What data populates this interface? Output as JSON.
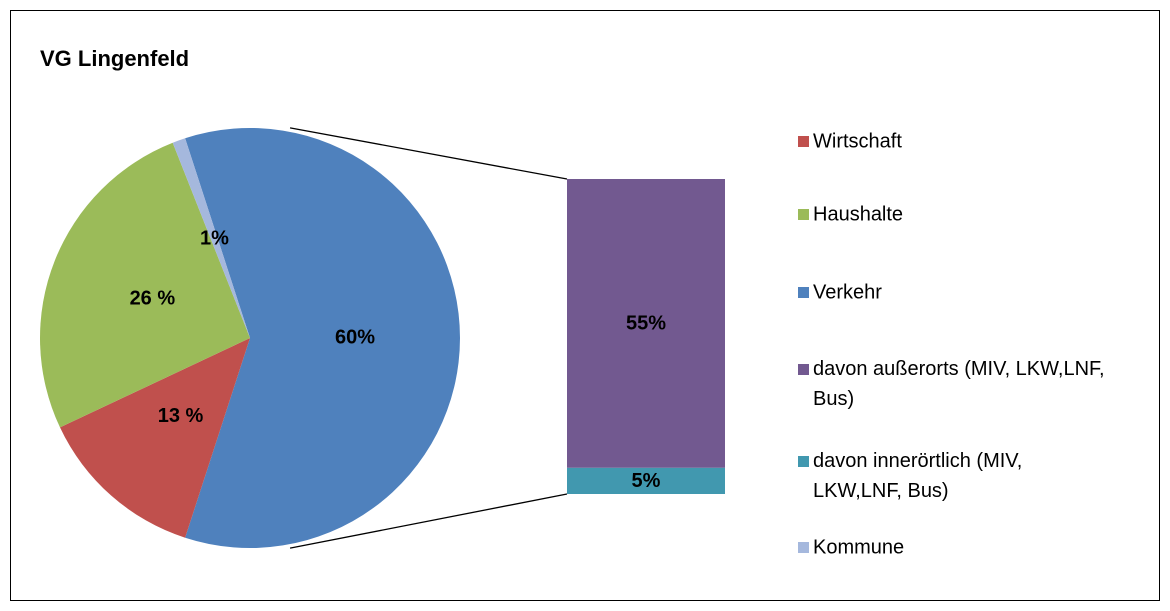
{
  "chart_data": {
    "type": "pie",
    "title": "VG Lingenfeld",
    "categories": [
      "Wirtschaft",
      "Haushalte",
      "Verkehr",
      "Kommune"
    ],
    "values": [
      13,
      26,
      60,
      1
    ],
    "value_labels": [
      "13 %",
      "26 %",
      "60%",
      "1%"
    ],
    "colors": [
      "#c0504d",
      "#9bbb59",
      "#4f81bd",
      "#a5b8dd"
    ],
    "breakdown": {
      "of": "Verkehr",
      "categories": [
        "davon außerorts (MIV, LKW,LNF, Bus)",
        "davon innerörtlich (MIV, LKW,LNF, Bus)"
      ],
      "values": [
        55,
        5
      ],
      "value_labels": [
        "55%",
        "5%"
      ],
      "colors": [
        "#725990",
        "#4198af"
      ]
    },
    "legend": "right"
  }
}
